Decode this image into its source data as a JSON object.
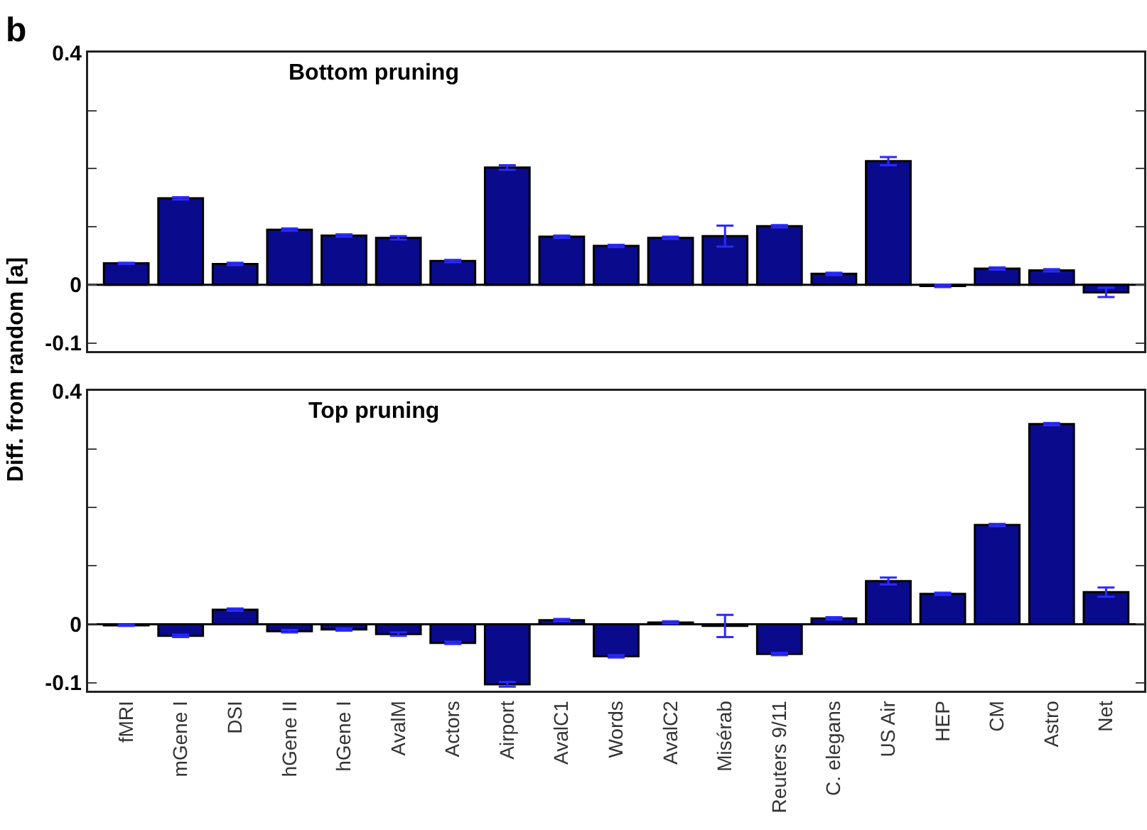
{
  "chart_data": [
    {
      "type": "bar",
      "title": "Bottom pruning",
      "ylabel": "Diff. from random [a]",
      "annotations": [
        "b"
      ],
      "categories": [
        null,
        null,
        null,
        null,
        null,
        null,
        null,
        null,
        null,
        null,
        null,
        null,
        null,
        null,
        null,
        null,
        null,
        null,
        null
      ],
      "values": [
        0.037,
        0.149,
        0.036,
        0.095,
        0.085,
        0.081,
        0.041,
        0.202,
        0.083,
        0.067,
        0.081,
        0.084,
        0.101,
        0.019,
        0.213,
        -0.002,
        0.028,
        0.025,
        -0.013
      ],
      "errors": [
        0.001,
        0.002,
        0.002,
        0.002,
        0.002,
        0.003,
        0.002,
        0.004,
        0.002,
        0.002,
        0.002,
        0.018,
        0.002,
        0.002,
        0.007,
        0.002,
        0.002,
        0.002,
        0.008
      ],
      "color": "#0a0a8c",
      "ylim": [
        -0.114,
        0.4
      ],
      "yticks": [
        0.4,
        {
          "value": 0.3,
          "label": null
        },
        {
          "value": 0.2,
          "label": null
        },
        {
          "value": 0.1,
          "label": null
        },
        0,
        -0.1
      ],
      "ref_lines": [
        {
          "axis": "y",
          "value": 0
        }
      ],
      "grid": false,
      "tick_labels": "y"
    },
    {
      "type": "bar",
      "title": "Top pruning",
      "categories": [
        "fMRI",
        "mGene I",
        "DSI",
        "hGene II",
        "hGene I",
        "AvalM",
        "Actors",
        "Airport",
        "AvalC1",
        "Words",
        "AvalC2",
        "Misérab",
        "Reuters 9/11",
        "C. elegans",
        "US Air",
        "HEP",
        "CM",
        "Astro",
        "Net"
      ],
      "values": [
        -0.002,
        -0.02,
        0.025,
        -0.012,
        -0.009,
        -0.017,
        -0.032,
        -0.103,
        0.007,
        -0.055,
        0.003,
        -0.003,
        -0.051,
        0.01,
        0.074,
        0.052,
        0.17,
        0.343,
        0.055
      ],
      "errors": [
        0.001,
        0.002,
        0.002,
        0.002,
        0.002,
        0.003,
        0.002,
        0.004,
        0.002,
        0.002,
        0.002,
        0.019,
        0.002,
        0.002,
        0.006,
        0.002,
        0.002,
        0.002,
        0.008
      ],
      "color": "#0a0a8c",
      "ylim": [
        -0.114,
        0.4
      ],
      "yticks": [
        0.4,
        {
          "value": 0.3,
          "label": null
        },
        {
          "value": 0.2,
          "label": null
        },
        {
          "value": 0.1,
          "label": null
        },
        0,
        -0.1
      ],
      "ref_lines": [
        {
          "axis": "y",
          "value": 0
        }
      ],
      "grid": false
    }
  ]
}
